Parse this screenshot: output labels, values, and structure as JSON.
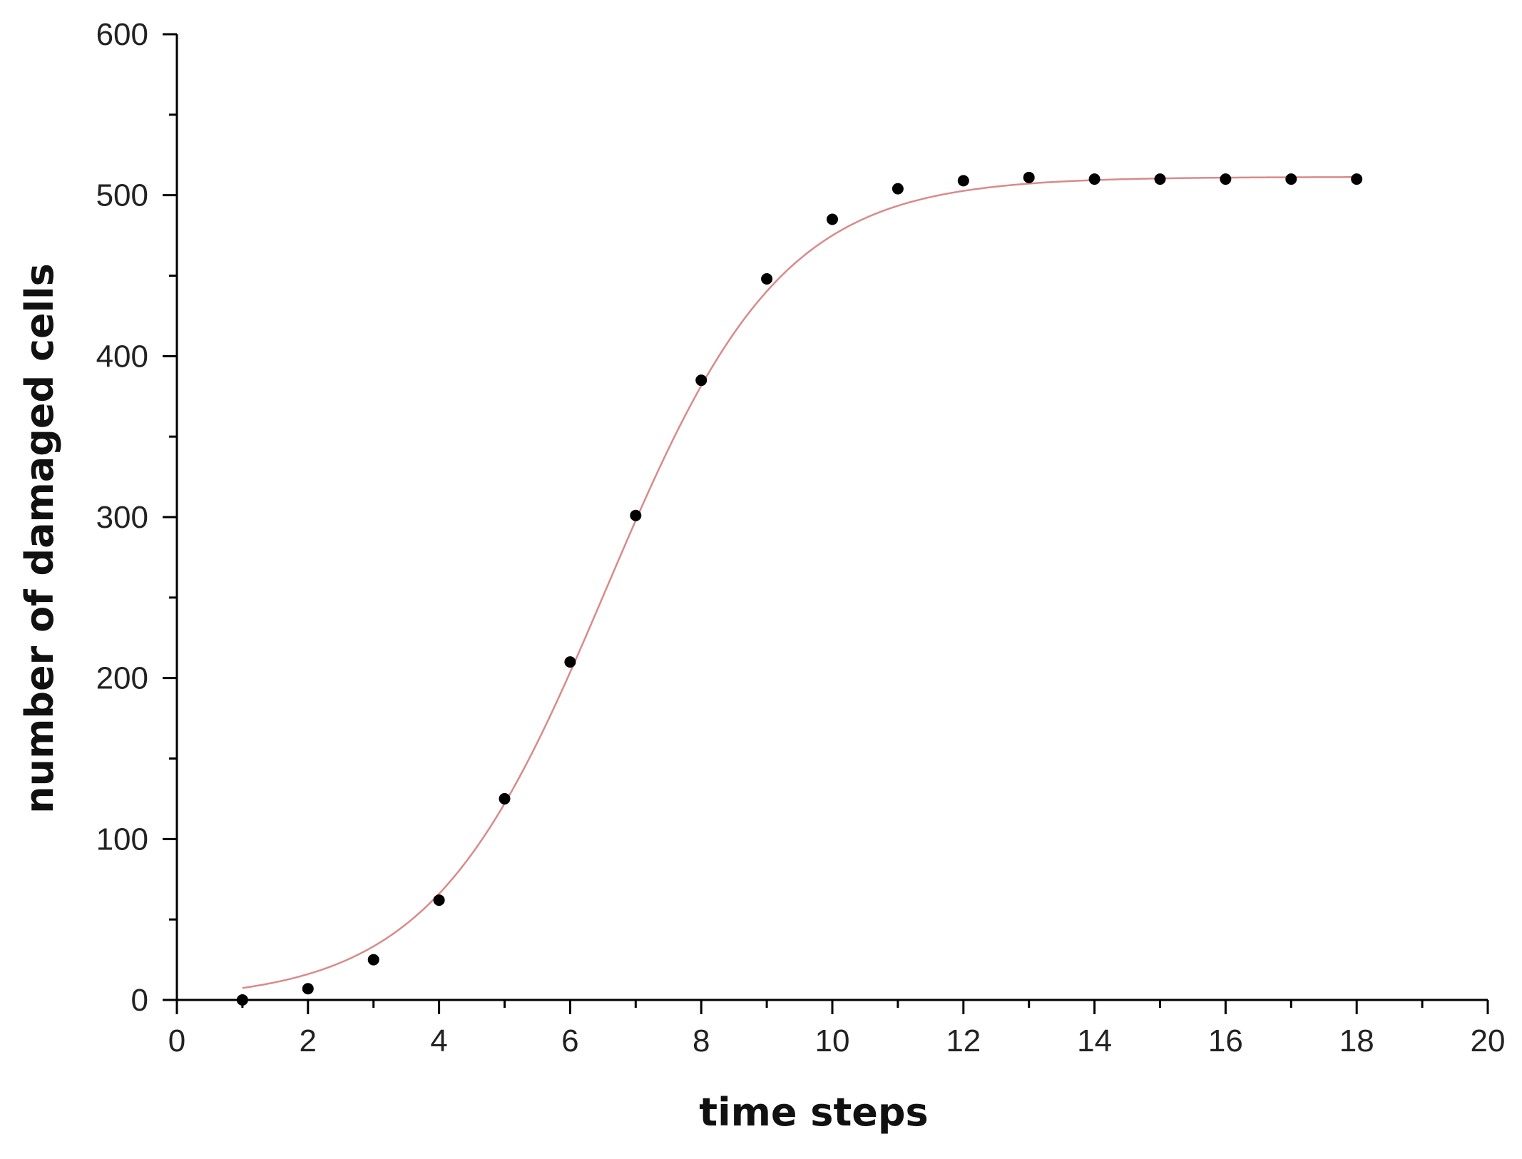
{
  "chart_data": {
    "type": "scatter",
    "title": "",
    "xlabel": "time steps",
    "ylabel": "number of damaged cells",
    "xlim": [
      0,
      20
    ],
    "ylim": [
      0,
      600
    ],
    "x_major_ticks": [
      0,
      2,
      4,
      6,
      8,
      10,
      12,
      14,
      16,
      18,
      20
    ],
    "x_minor_ticks": [
      1,
      3,
      5,
      7,
      9,
      11,
      13,
      15,
      17,
      19
    ],
    "y_major_ticks": [
      0,
      100,
      200,
      300,
      400,
      500,
      600
    ],
    "y_minor_ticks": [
      50,
      150,
      250,
      350,
      450,
      550
    ],
    "x_tick_labels": [
      "0",
      "2",
      "4",
      "6",
      "8",
      "10",
      "12",
      "14",
      "16",
      "18",
      "20"
    ],
    "y_tick_labels": [
      "0",
      "100",
      "200",
      "300",
      "400",
      "500",
      "600"
    ],
    "grid": false,
    "legend": "none",
    "series": [
      {
        "kind": "scatter",
        "x": [
          1,
          2,
          3,
          4,
          5,
          6,
          7,
          8,
          9,
          10,
          11,
          12,
          13,
          14,
          15,
          16,
          17,
          18
        ],
        "y": [
          0,
          7,
          25,
          62,
          125,
          210,
          301,
          385,
          448,
          485,
          504,
          509,
          511,
          510,
          510,
          510,
          510,
          510
        ],
        "color": "#000000"
      },
      {
        "kind": "fit-curve",
        "model": "logistic",
        "params": {
          "L": 512,
          "k": 0.745,
          "x0": 6.55,
          "offset": -0.65
        },
        "x_range": [
          1,
          18
        ],
        "color": "#d98a8a"
      }
    ]
  }
}
